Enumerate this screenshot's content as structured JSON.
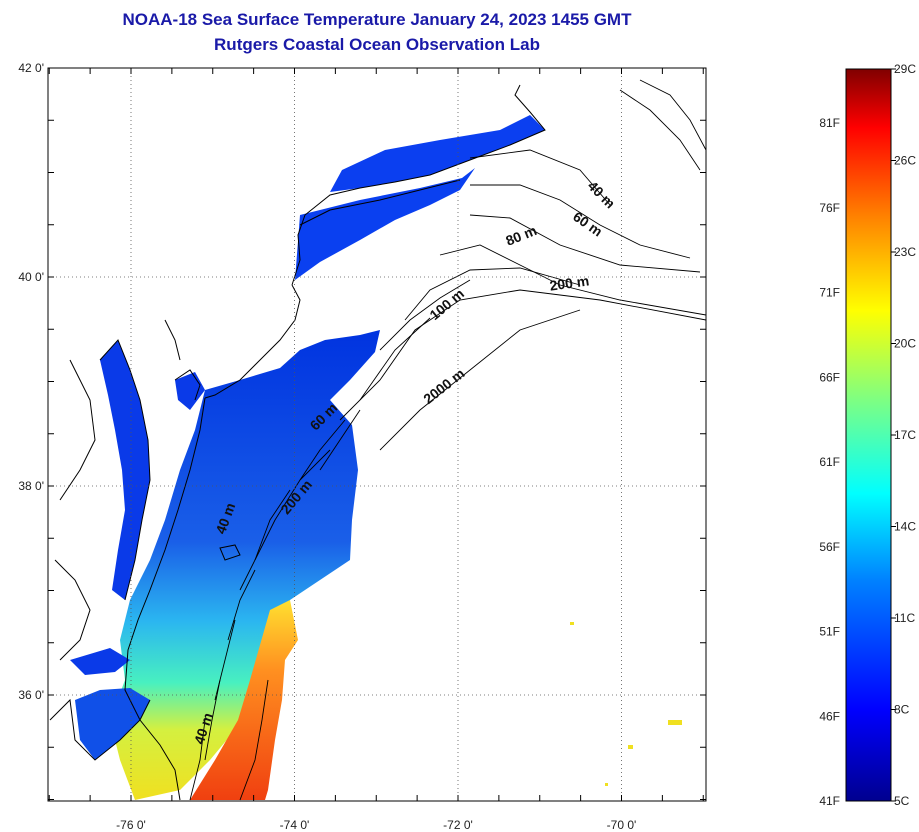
{
  "title": {
    "line1": "NOAA-18 Sea Surface Temperature January 24, 2023 1455 GMT",
    "line2": "Rutgers Coastal Ocean Observation Lab"
  },
  "lat_ticks": [
    {
      "value": 42,
      "label": "42 0'"
    },
    {
      "value": 40,
      "label": "40 0'"
    },
    {
      "value": 38,
      "label": "38 0'"
    },
    {
      "value": 36,
      "label": "36 0'"
    }
  ],
  "lon_ticks": [
    {
      "value": -76,
      "label": "-76 0'"
    },
    {
      "value": -74,
      "label": "-74 0'"
    },
    {
      "value": -72,
      "label": "-72 0'"
    },
    {
      "value": -70,
      "label": "-70 0'"
    }
  ],
  "contour_labels": [
    {
      "text": "40 m",
      "angle": 45
    },
    {
      "text": "60 m",
      "angle": 35
    },
    {
      "text": "80 m",
      "angle": -22
    },
    {
      "text": "200 m",
      "angle": -8
    },
    {
      "text": "100 m",
      "angle": -40
    },
    {
      "text": "2000 m",
      "angle": -38
    },
    {
      "text": "60 m",
      "angle": -45
    },
    {
      "text": "200 m",
      "angle": -50
    },
    {
      "text": "40 m",
      "angle": -70
    },
    {
      "text": "40 m",
      "angle": -72
    }
  ],
  "colorbar": {
    "min_c": 5,
    "max_c": 29,
    "left_labels": [
      "81F",
      "76F",
      "71F",
      "66F",
      "61F",
      "56F",
      "51F",
      "46F",
      "41F"
    ],
    "left_values_f": [
      81,
      76,
      71,
      66,
      61,
      56,
      51,
      46,
      41
    ],
    "right_labels": [
      "29C",
      "26C",
      "23C",
      "20C",
      "17C",
      "14C",
      "11C",
      "8C",
      "5C"
    ],
    "right_values_c": [
      29,
      26,
      23,
      20,
      17,
      14,
      11,
      8,
      5
    ],
    "colors": [
      "#00008f",
      "#0000ff",
      "#0080ff",
      "#00ffff",
      "#80ff80",
      "#ffff00",
      "#ff8000",
      "#ff0000",
      "#800000"
    ]
  }
}
